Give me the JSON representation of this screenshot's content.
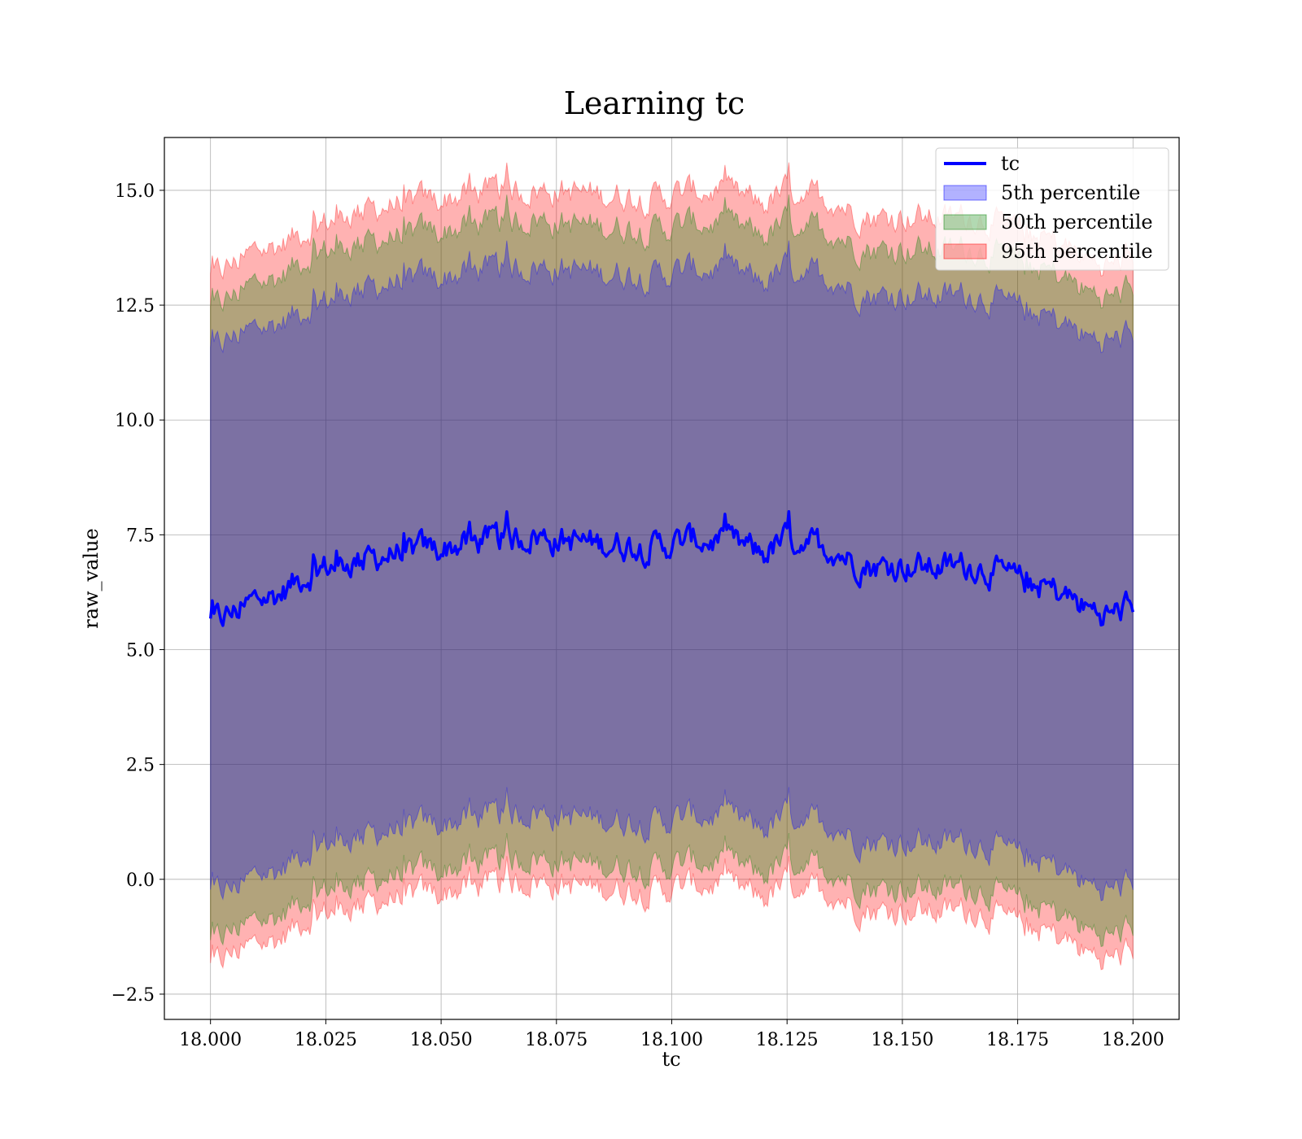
{
  "chart_data": {
    "type": "line",
    "title": "Learning tc",
    "xlabel": "tc",
    "ylabel": "raw_value",
    "xlim": [
      17.99,
      18.21
    ],
    "ylim": [
      -3.05,
      16.15
    ],
    "x_ticks": [
      18.0,
      18.025,
      18.05,
      18.075,
      18.1,
      18.125,
      18.15,
      18.175,
      18.2
    ],
    "x_tick_labels": [
      "18.000",
      "18.025",
      "18.050",
      "18.075",
      "18.100",
      "18.125",
      "18.150",
      "18.175",
      "18.200"
    ],
    "y_ticks": [
      -2.5,
      0.0,
      2.5,
      5.0,
      7.5,
      10.0,
      12.5,
      15.0
    ],
    "y_tick_labels": [
      "−2.5",
      "0.0",
      "2.5",
      "5.0",
      "7.5",
      "10.0",
      "12.5",
      "15.0"
    ],
    "grid": true,
    "legend_position": "top-right",
    "colors": {
      "line": "#0000ff",
      "band_5": "#0000ff",
      "band_50": "#008000",
      "band_95": "#ff0000",
      "grid": "#b0b0b0"
    },
    "series": [
      {
        "name": "tc",
        "x": [
          18.0,
          18.005,
          18.01,
          18.015,
          18.02,
          18.025,
          18.03,
          18.035,
          18.04,
          18.045,
          18.05,
          18.055,
          18.06,
          18.065,
          18.07,
          18.075,
          18.08,
          18.085,
          18.09,
          18.095,
          18.1,
          18.105,
          18.11,
          18.115,
          18.12,
          18.125,
          18.13,
          18.135,
          18.14,
          18.145,
          18.15,
          18.155,
          18.16,
          18.165,
          18.17,
          18.175,
          18.18,
          18.185,
          18.19,
          18.195,
          18.2
        ],
        "values": [
          5.6,
          5.8,
          6.1,
          6.2,
          6.6,
          6.8,
          6.9,
          7.0,
          7.1,
          7.2,
          7.2,
          7.3,
          7.4,
          7.4,
          7.5,
          7.4,
          7.35,
          7.3,
          7.3,
          7.25,
          7.3,
          7.4,
          7.35,
          7.25,
          7.1,
          7.4,
          7.35,
          7.2,
          6.9,
          6.8,
          6.85,
          6.8,
          6.8,
          6.85,
          6.7,
          6.5,
          6.4,
          6.2,
          5.9,
          5.75,
          6.0
        ]
      }
    ],
    "bands": [
      {
        "name": "5th percentile",
        "lower": [
          -0.3,
          -0.2,
          0.1,
          0.2,
          0.6,
          0.8,
          0.9,
          1.0,
          1.1,
          1.2,
          1.2,
          1.3,
          1.4,
          1.4,
          1.5,
          1.4,
          1.35,
          1.3,
          1.3,
          1.25,
          1.3,
          1.4,
          1.35,
          1.25,
          1.1,
          1.4,
          1.35,
          1.2,
          0.9,
          0.8,
          0.85,
          0.8,
          0.8,
          0.85,
          0.7,
          0.5,
          0.4,
          0.2,
          -0.1,
          -0.25,
          -0.05
        ],
        "upper": [
          11.5,
          11.8,
          12.0,
          12.1,
          12.4,
          12.6,
          12.8,
          12.9,
          13.0,
          13.1,
          13.1,
          13.2,
          13.3,
          13.3,
          13.35,
          13.3,
          13.25,
          13.2,
          13.2,
          13.15,
          13.2,
          13.3,
          13.25,
          13.15,
          13.0,
          13.3,
          13.25,
          13.1,
          12.8,
          12.7,
          12.75,
          12.7,
          12.7,
          12.75,
          12.6,
          12.4,
          12.3,
          12.1,
          11.8,
          11.7,
          11.9
        ]
      },
      {
        "name": "50th percentile",
        "lower": [
          -1.4,
          -1.1,
          -0.9,
          -0.8,
          -0.4,
          -0.2,
          -0.1,
          0.0,
          0.1,
          0.2,
          0.2,
          0.3,
          0.4,
          0.4,
          0.5,
          0.4,
          0.35,
          0.3,
          0.3,
          0.25,
          0.3,
          0.4,
          0.35,
          0.25,
          0.1,
          0.4,
          0.35,
          0.2,
          -0.1,
          -0.2,
          -0.15,
          -0.2,
          -0.2,
          -0.15,
          -0.3,
          -0.5,
          -0.6,
          -0.8,
          -1.1,
          -1.25,
          -1.05
        ],
        "upper": [
          12.4,
          12.7,
          13.0,
          13.1,
          13.5,
          13.7,
          13.8,
          13.9,
          14.0,
          14.1,
          14.1,
          14.2,
          14.3,
          14.3,
          14.4,
          14.3,
          14.25,
          14.2,
          14.2,
          14.15,
          14.2,
          14.3,
          14.25,
          14.15,
          14.0,
          14.3,
          14.25,
          14.1,
          13.8,
          13.7,
          13.75,
          13.7,
          13.7,
          13.75,
          13.6,
          13.4,
          13.3,
          13.1,
          12.8,
          12.65,
          12.9
        ]
      },
      {
        "name": "95th percentile",
        "lower": [
          -1.9,
          -1.6,
          -1.4,
          -1.3,
          -0.9,
          -0.7,
          -0.6,
          -0.5,
          -0.4,
          -0.3,
          -0.3,
          -0.2,
          -0.1,
          -0.1,
          0.0,
          -0.1,
          -0.15,
          -0.2,
          -0.2,
          -0.25,
          -0.2,
          -0.1,
          -0.15,
          -0.25,
          -0.4,
          -0.1,
          -0.15,
          -0.3,
          -0.6,
          -0.7,
          -0.65,
          -0.7,
          -0.7,
          -0.65,
          -0.8,
          -1.0,
          -1.1,
          -1.3,
          -1.6,
          -1.75,
          -1.55
        ],
        "upper": [
          13.1,
          13.4,
          13.7,
          13.8,
          14.1,
          14.3,
          14.5,
          14.6,
          14.7,
          14.8,
          14.8,
          14.9,
          15.0,
          15.0,
          15.0,
          15.0,
          14.95,
          14.9,
          14.9,
          14.85,
          14.9,
          15.0,
          14.95,
          14.85,
          14.7,
          15.0,
          14.95,
          14.8,
          14.5,
          14.4,
          14.45,
          14.4,
          14.4,
          14.45,
          14.3,
          14.1,
          14.0,
          13.8,
          13.5,
          13.35,
          13.6
        ]
      }
    ]
  }
}
